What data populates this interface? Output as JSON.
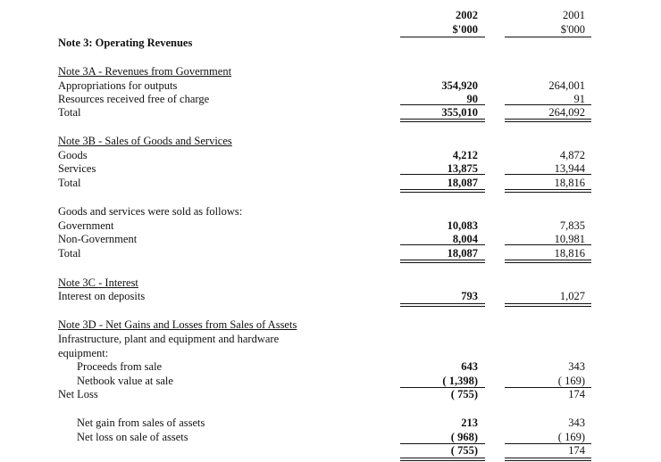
{
  "header": {
    "year_current": "2002",
    "unit_current": "$'000",
    "year_prior": "2001",
    "unit_prior": "$'000"
  },
  "title": "Note 3: Operating Revenues",
  "rows": [
    {
      "label": "Note 3A - Revenues from Government"
    },
    {
      "label": "Appropriations for outputs",
      "v2002": "354,920",
      "v2001": "264,001"
    },
    {
      "label": "Resources received free of charge",
      "v2002": "90",
      "v2001": "91"
    },
    {
      "label": "Total",
      "v2002": "355,010",
      "v2001": "264,092"
    },
    {
      "label": "Note 3B - Sales of Goods and Services"
    },
    {
      "label": "Goods",
      "v2002": "4,212",
      "v2001": "4,872"
    },
    {
      "label": "Services",
      "v2002": "13,875",
      "v2001": "13,944"
    },
    {
      "label": "Total",
      "v2002": "18,087",
      "v2001": "18,816"
    },
    {
      "label": "Goods and services were sold as follows:"
    },
    {
      "label": "Government",
      "v2002": "10,083",
      "v2001": "7,835"
    },
    {
      "label": "Non-Government",
      "v2002": "8,004",
      "v2001": "10,981"
    },
    {
      "label": "Total",
      "v2002": "18,087",
      "v2001": "18,816"
    },
    {
      "label": "Note 3C - Interest"
    },
    {
      "label": "Interest on deposits",
      "v2002": "793",
      "v2001": "1,027"
    },
    {
      "label": "Note 3D - Net Gains and Losses from Sales of Assets"
    },
    {
      "label": "Infrastructure, plant and equipment and hardware"
    },
    {
      "label": "equipment:"
    },
    {
      "label": "Proceeds from sale",
      "v2002": "643",
      "v2001": "343"
    },
    {
      "label": "Netbook value at sale",
      "v2002": "( 1,398)",
      "v2001": "( 169)"
    },
    {
      "label": "Net Loss",
      "v2002": "( 755)",
      "v2001": "174"
    },
    {
      "label": "Net gain from sales of assets",
      "v2002": "213",
      "v2001": "343"
    },
    {
      "label": "Net loss on sale of assets",
      "v2002": "( 968)",
      "v2001": "( 169)"
    },
    {
      "label": "",
      "v2002": "( 755)",
      "v2001": "174"
    }
  ]
}
